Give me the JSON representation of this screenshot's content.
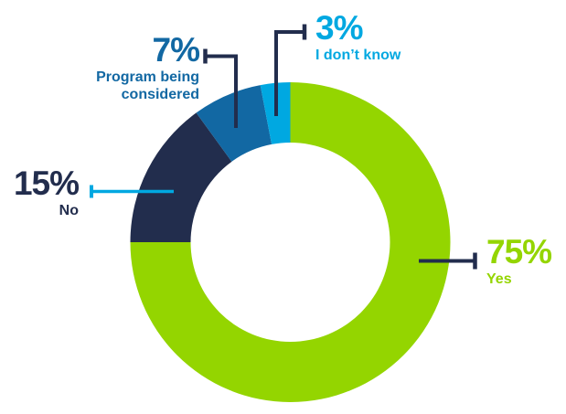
{
  "chart_data": {
    "type": "pie",
    "subtype": "donut",
    "title": "",
    "categories": [
      "Yes",
      "No",
      "Program being considered",
      "I don't know"
    ],
    "values": [
      75,
      15,
      7,
      3
    ],
    "unit": "%",
    "colors": [
      "#94D500",
      "#222D4D",
      "#1268A3",
      "#00A8E1"
    ],
    "start_angle_deg": 0,
    "direction": "clockwise",
    "inner_radius_ratio": 0.62,
    "legend": "none",
    "grid": false
  },
  "labels": {
    "yes": {
      "pct": "75%",
      "name": "Yes",
      "color": "#94D500"
    },
    "no": {
      "pct": "15%",
      "name": "No",
      "color": "#222D4D"
    },
    "considered": {
      "pct": "7%",
      "name": "Program being considered",
      "color": "#1268A3"
    },
    "idk": {
      "pct": "3%",
      "name": "I don’t know",
      "color": "#00A8E1"
    }
  },
  "colors": {
    "navy": "#222D4D",
    "light_blue": "#00A8E1",
    "green": "#94D500",
    "medium_blue": "#1268A3",
    "background": "#ffffff"
  }
}
